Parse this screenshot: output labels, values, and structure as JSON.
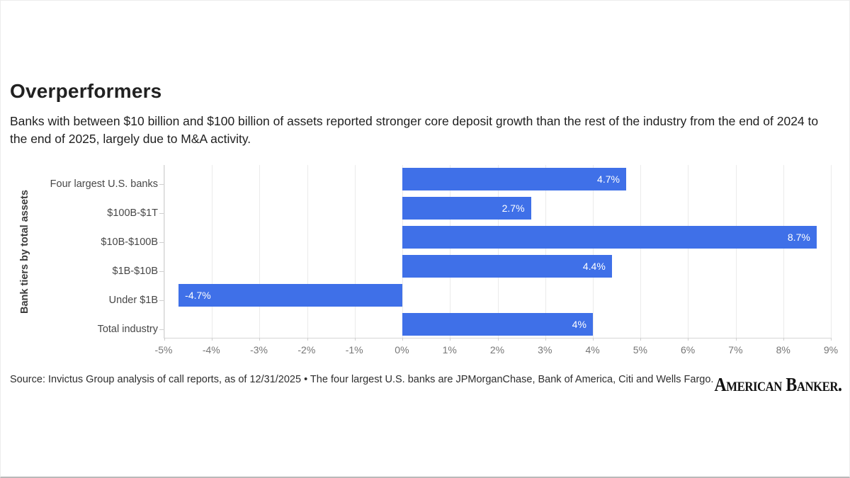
{
  "header": {
    "title": "Overperformers",
    "subtitle": "Banks with between $10 billion and $100 billion of assets reported stronger core deposit growth than the rest of the industry from the end of 2024 to the end of 2025, largely due to M&A activity."
  },
  "chart_data": {
    "type": "bar",
    "orientation": "horizontal",
    "title": "Overperformers",
    "ylabel": "Bank tiers by total assets",
    "xlabel": "",
    "categories": [
      "Four largest U.S. banks",
      "$100B-$1T",
      "$10B-$100B",
      "$1B-$10B",
      "Under $1B",
      "Total industry"
    ],
    "values": [
      4.7,
      2.7,
      8.7,
      4.4,
      -4.7,
      4
    ],
    "value_labels": [
      "4.7%",
      "2.7%",
      "8.7%",
      "4.4%",
      "-4.7%",
      "4%"
    ],
    "xlim": [
      -5,
      9
    ],
    "xtick_step": 1,
    "xtick_suffix": "%",
    "grid": true,
    "legend": "none",
    "bar_color": "#3f70e8",
    "value_label_color": "#ffffff",
    "units": "percent core deposit growth"
  },
  "footer": {
    "source": "Source: Invictus Group analysis of call reports, as of 12/31/2025 • The four largest U.S. banks are JPMorganChase, Bank of America, Citi and Wells Fargo.",
    "brand": "American Banker."
  }
}
